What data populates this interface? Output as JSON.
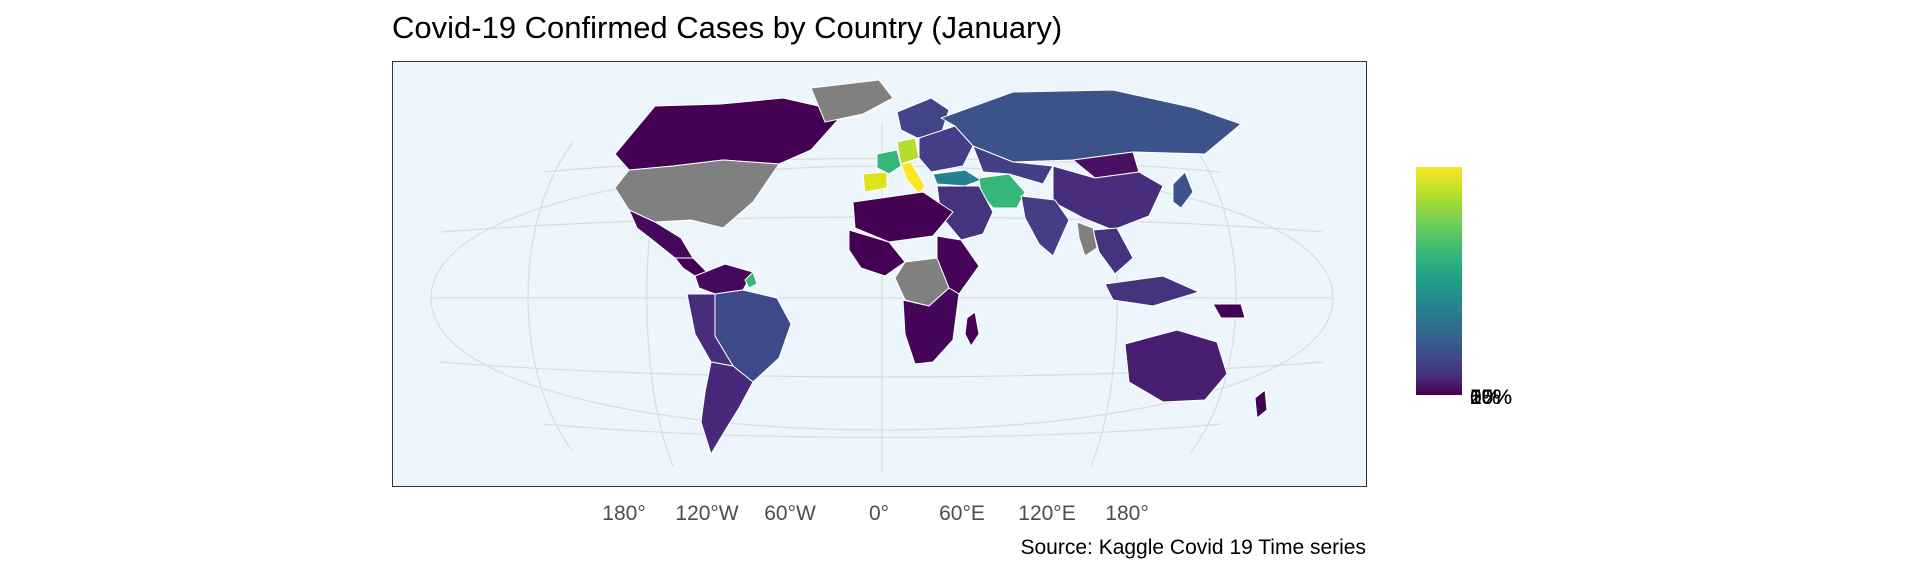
{
  "title": "Covid-19 Confirmed Cases by Country (January)",
  "caption": "Source: Kaggle Covid 19 Time series",
  "x_axis": {
    "ticks": [
      "180°",
      "120°W",
      "60°W",
      "0°",
      "60°E",
      "120°E",
      "180°"
    ]
  },
  "legend": {
    "labels": [
      "0%",
      "5%",
      "10%",
      "15%",
      "20%"
    ],
    "palette": [
      "#440154",
      "#482878",
      "#3e4989",
      "#31688e",
      "#26828e",
      "#1f9e89",
      "#35b779",
      "#6ece58",
      "#b5de2b",
      "#fde725"
    ],
    "missing_color": "#808080"
  },
  "map": {
    "projection": "Winkel tripel",
    "ocean_color": "#eef6fd",
    "graticule_color": "#dcdcdc",
    "border_color": "#ffffff",
    "regions": [
      {
        "name": "Canada",
        "fill": "#440154"
      },
      {
        "name": "United States",
        "fill": "#808080"
      },
      {
        "name": "Greenland",
        "fill": "#808080"
      },
      {
        "name": "Mexico",
        "fill": "#46085c"
      },
      {
        "name": "Central America",
        "fill": "#440154"
      },
      {
        "name": "Colombia / Venezuela",
        "fill": "#46085c"
      },
      {
        "name": "Brazil",
        "fill": "#3e4989"
      },
      {
        "name": "Peru / Bolivia",
        "fill": "#472d7b"
      },
      {
        "name": "Argentina / Chile",
        "fill": "#482878"
      },
      {
        "name": "Guyana region",
        "fill": "#35b779"
      },
      {
        "name": "Spain / Portugal",
        "fill": "#dce319"
      },
      {
        "name": "France",
        "fill": "#35b779"
      },
      {
        "name": "Germany",
        "fill": "#b5de2b"
      },
      {
        "name": "Italy",
        "fill": "#fde725"
      },
      {
        "name": "Scandinavia",
        "fill": "#414487"
      },
      {
        "name": "Eastern Europe",
        "fill": "#433e85"
      },
      {
        "name": "Russia",
        "fill": "#3b528b"
      },
      {
        "name": "Turkey",
        "fill": "#26828e"
      },
      {
        "name": "Iran",
        "fill": "#35b779"
      },
      {
        "name": "Middle East",
        "fill": "#46337e"
      },
      {
        "name": "Kazakhstan / Central Asia",
        "fill": "#433e85"
      },
      {
        "name": "Mongolia",
        "fill": "#471063"
      },
      {
        "name": "China",
        "fill": "#472d7b"
      },
      {
        "name": "India",
        "fill": "#433e85"
      },
      {
        "name": "Southeast Asia",
        "fill": "#46337e"
      },
      {
        "name": "Myanmar",
        "fill": "#808080"
      },
      {
        "name": "Japan",
        "fill": "#3b528b"
      },
      {
        "name": "Indonesia / Philippines",
        "fill": "#46337e"
      },
      {
        "name": "North Africa",
        "fill": "#440154"
      },
      {
        "name": "West / Central Africa",
        "fill": "#440154"
      },
      {
        "name": "DR Congo region",
        "fill": "#808080"
      },
      {
        "name": "East Africa",
        "fill": "#450457"
      },
      {
        "name": "Southern Africa",
        "fill": "#450559"
      },
      {
        "name": "Madagascar",
        "fill": "#440154"
      },
      {
        "name": "Australia",
        "fill": "#481f70"
      },
      {
        "name": "Papua New Guinea",
        "fill": "#440154"
      },
      {
        "name": "New Zealand",
        "fill": "#440154"
      }
    ]
  }
}
